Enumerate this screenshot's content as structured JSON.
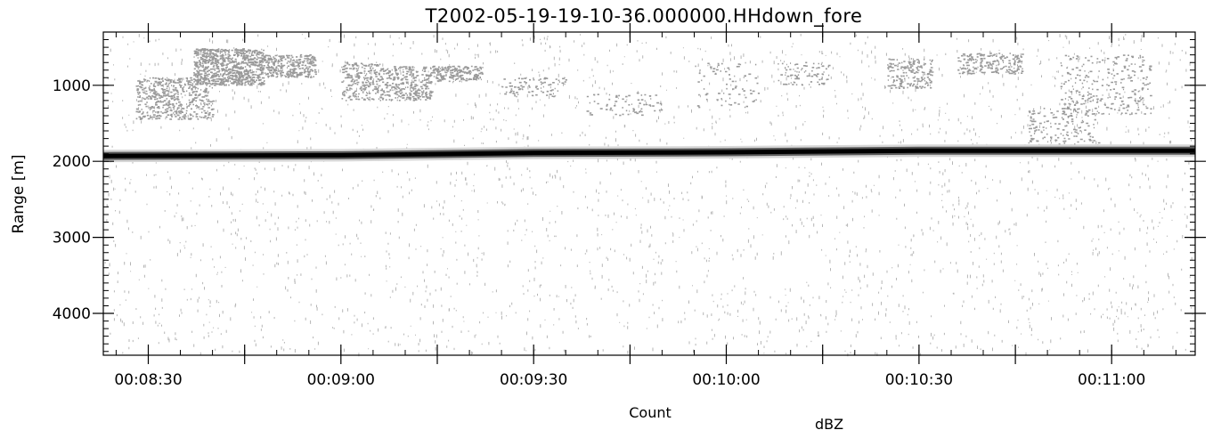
{
  "chart_data": {
    "type": "heatmap",
    "title": "T2002-05-19-19-10-36.000000.HHdown_fore",
    "xlabel": "Count",
    "ylabel": "Range [m]",
    "colorbar_label": "dBZ",
    "x_axis": {
      "start": "00:08:23",
      "end": "00:11:13",
      "ticks": [
        "00:08:30",
        "00:09:00",
        "00:09:30",
        "00:10:00",
        "00:10:30",
        "00:11:00"
      ]
    },
    "y_axis": {
      "range_m": [
        300,
        4550
      ],
      "inverted": true,
      "ticks": [
        1000,
        2000,
        3000,
        4000
      ]
    },
    "colormap": [
      "#ffffff",
      "#000000"
    ],
    "surface_return": {
      "description_points_time": [
        "00:08:23",
        "00:09:00",
        "00:09:30",
        "00:10:00",
        "00:10:30",
        "00:11:13"
      ],
      "range_m": [
        1930,
        1920,
        1890,
        1880,
        1860,
        1860
      ]
    }
  }
}
